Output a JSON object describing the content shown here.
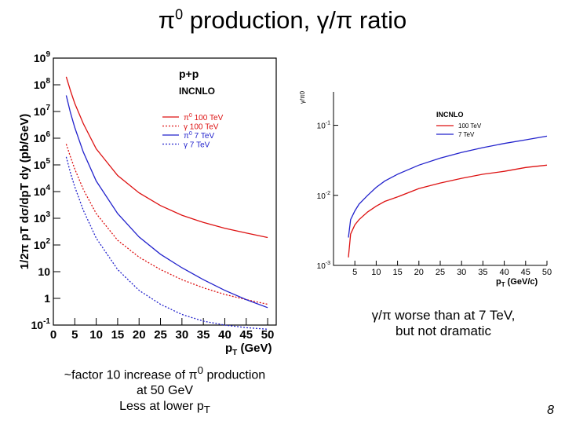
{
  "slide": {
    "title_a": "π",
    "title_sup": "0",
    "title_b": " production, γ/π ratio",
    "note_left": {
      "line1_a": "~factor 10 increase of π",
      "line1_sup": "0",
      "line1_b": " production",
      "line2": "at 50 GeV",
      "line3_a": "Less at lower p",
      "line3_sub": "T"
    },
    "note_right": {
      "line1": "γ/π worse than at 7 TeV,",
      "line2": "but not dramatic"
    },
    "page_number": "8"
  },
  "chart_data": [
    {
      "type": "line",
      "name": "spectra",
      "title": "p+p",
      "subtitle": "INCNLO",
      "ylabel": "1/2π pT dσ/dpT dy (pb/GeV)",
      "xlabel": "pT (GeV)",
      "xlim": [
        0,
        52
      ],
      "ylim": [
        0.1,
        1000000000
      ],
      "log_y": true,
      "xticks": [
        0,
        5,
        10,
        15,
        20,
        25,
        30,
        35,
        40,
        45,
        50
      ],
      "yticks": [
        {
          "value": 0.1,
          "base": "10",
          "exp": "-1"
        },
        {
          "value": 1,
          "base": "1",
          "exp": ""
        },
        {
          "value": 10,
          "base": "10",
          "exp": ""
        },
        {
          "value": 100,
          "base": "10",
          "exp": "2"
        },
        {
          "value": 1000,
          "base": "10",
          "exp": "3"
        },
        {
          "value": 10000,
          "base": "10",
          "exp": "4"
        },
        {
          "value": 100000,
          "base": "10",
          "exp": "5"
        },
        {
          "value": 1000000,
          "base": "10",
          "exp": "6"
        },
        {
          "value": 10000000,
          "base": "10",
          "exp": "7"
        },
        {
          "value": 100000000,
          "base": "10",
          "exp": "8"
        },
        {
          "value": 1000000000,
          "base": "10",
          "exp": "9"
        }
      ],
      "series": [
        {
          "name": "π0 100 TeV",
          "legend_sym": "π",
          "legend_sup": "0",
          "legend_rest": " 100 TeV",
          "color": "#dd1111",
          "dash": false,
          "x": [
            3,
            4,
            5,
            7,
            10,
            15,
            20,
            25,
            30,
            35,
            40,
            45,
            50
          ],
          "y": [
            200000000,
            60000000,
            20000000,
            3500000,
            400000,
            40000,
            9000,
            3000,
            1300,
            700,
            420,
            280,
            190
          ]
        },
        {
          "name": "γ 100 TeV",
          "legend_sym": "γ",
          "legend_sup": "",
          "legend_rest": " 100 TeV",
          "color": "#dd1111",
          "dash": true,
          "x": [
            3,
            4,
            5,
            7,
            10,
            15,
            20,
            25,
            30,
            35,
            40,
            45,
            50
          ],
          "y": [
            600000,
            200000,
            70000,
            12000,
            1500,
            150,
            35,
            12,
            5,
            2.5,
            1.4,
            0.9,
            0.6
          ]
        },
        {
          "name": "π0 7 TeV",
          "legend_sym": "π",
          "legend_sup": "0",
          "legend_rest": " 7 TeV",
          "color": "#2222cc",
          "dash": false,
          "x": [
            3,
            4,
            5,
            7,
            10,
            15,
            20,
            25,
            30,
            35,
            40,
            45,
            50
          ],
          "y": [
            40000000,
            9000000,
            2500000,
            300000,
            25000,
            1500,
            200,
            45,
            14,
            5,
            2,
            0.9,
            0.45
          ]
        },
        {
          "name": "γ 7 TeV",
          "legend_sym": "γ",
          "legend_sup": "",
          "legend_rest": " 7 TeV",
          "color": "#2222cc",
          "dash": true,
          "x": [
            3,
            4,
            5,
            7,
            10,
            15,
            20,
            25,
            30,
            35,
            40,
            45,
            50
          ],
          "y": [
            200000,
            50000,
            15000,
            2000,
            180,
            12,
            2,
            0.6,
            0.25,
            0.14,
            0.1,
            0.08,
            0.07
          ]
        }
      ]
    },
    {
      "type": "line",
      "name": "ratio",
      "subtitle": "INCNLO",
      "ylabel": "γ/π0",
      "xlabel": "pT (GeV/c)",
      "xlim": [
        0,
        50
      ],
      "ylim": [
        0.001,
        0.3
      ],
      "log_y": true,
      "xticks": [
        5,
        10,
        15,
        20,
        25,
        30,
        35,
        40,
        45,
        50
      ],
      "yticks": [
        {
          "value": 0.001,
          "base": "10",
          "exp": "-3"
        },
        {
          "value": 0.01,
          "base": "10",
          "exp": "-2"
        },
        {
          "value": 0.1,
          "base": "10",
          "exp": "-1"
        }
      ],
      "series": [
        {
          "name": "100 TeV",
          "color": "#dd1111",
          "x": [
            3.5,
            4,
            5,
            6,
            8,
            10,
            12,
            15,
            20,
            25,
            30,
            35,
            40,
            45,
            50
          ],
          "y": [
            0.0013,
            0.0028,
            0.0038,
            0.0045,
            0.0058,
            0.007,
            0.0082,
            0.0095,
            0.0125,
            0.015,
            0.0175,
            0.02,
            0.022,
            0.025,
            0.027
          ]
        },
        {
          "name": "7 TeV",
          "color": "#2222cc",
          "x": [
            3.5,
            4,
            5,
            6,
            8,
            10,
            12,
            15,
            20,
            25,
            30,
            35,
            40,
            45,
            50
          ],
          "y": [
            0.0025,
            0.0045,
            0.006,
            0.0075,
            0.01,
            0.013,
            0.016,
            0.02,
            0.027,
            0.034,
            0.041,
            0.048,
            0.055,
            0.062,
            0.07
          ]
        }
      ]
    }
  ]
}
